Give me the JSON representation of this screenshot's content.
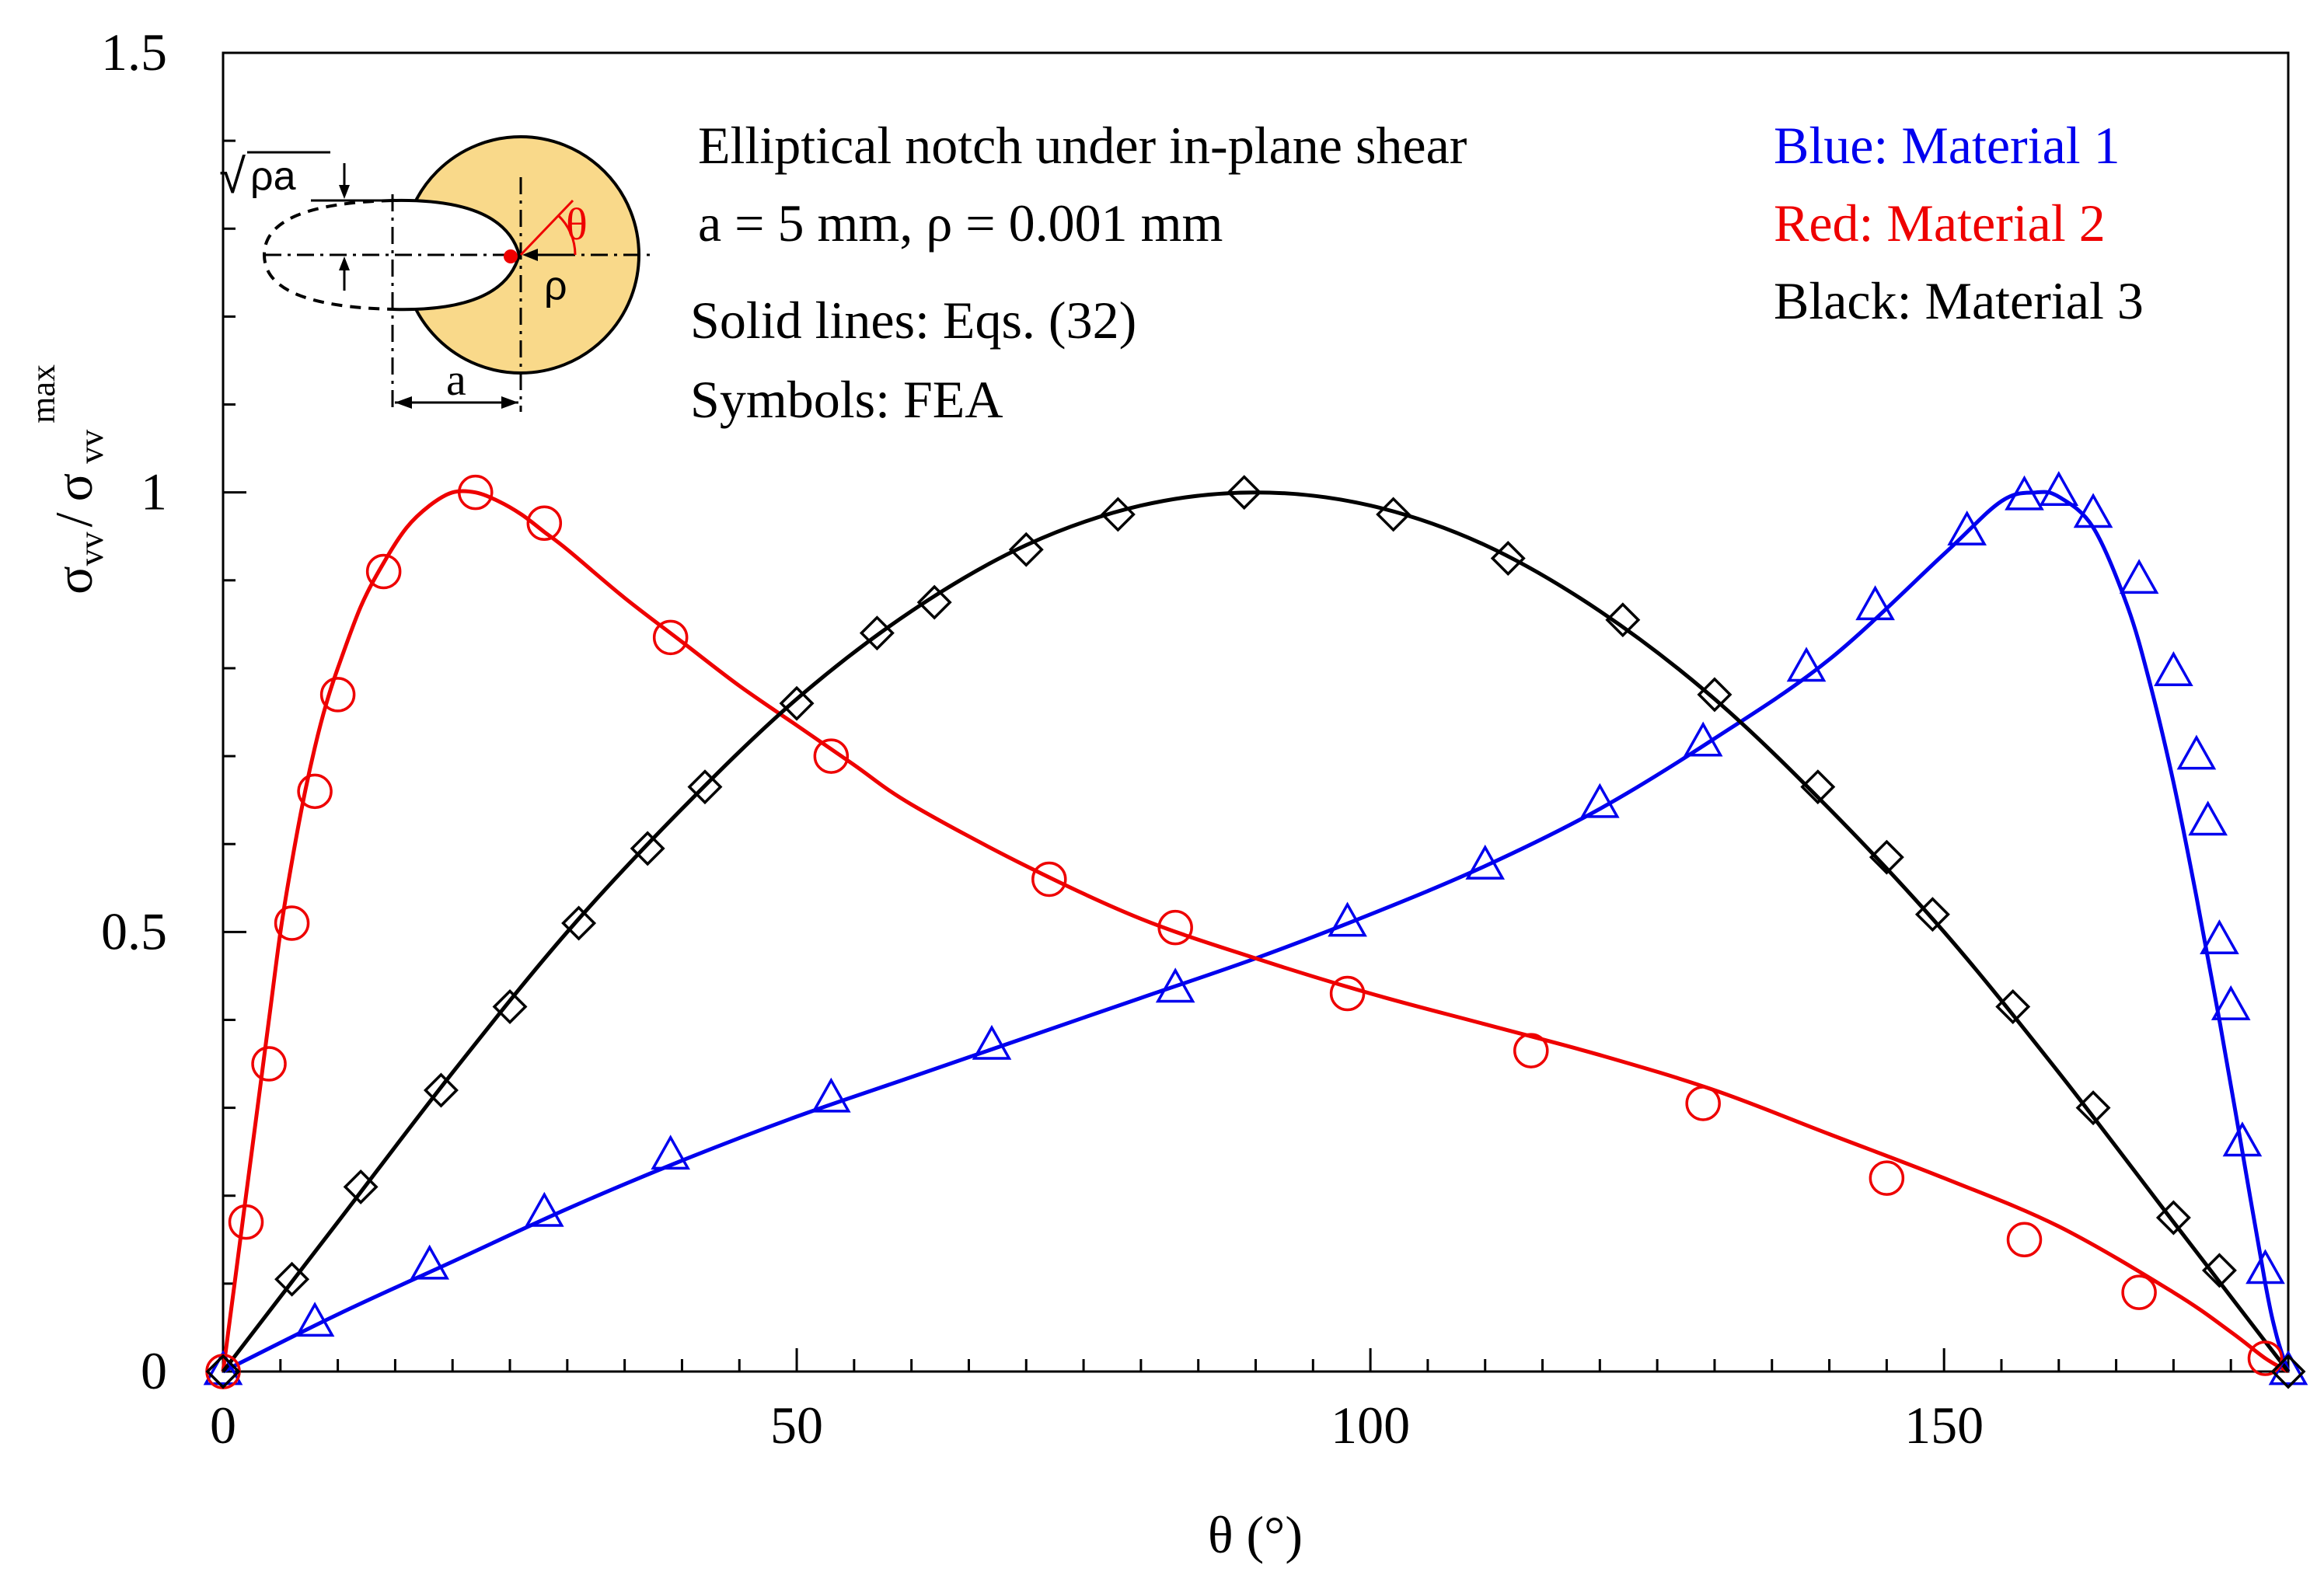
{
  "chart_data": {
    "type": "line",
    "title": "Elliptical notch under in-plane shear",
    "xlabel": "θ (°)",
    "ylabel": {
      "sigma": "σ",
      "sub": "vv",
      "slash": "/",
      "sup": "max"
    },
    "xlim": [
      0,
      180
    ],
    "ylim": [
      0,
      1.5
    ],
    "x_ticks": [
      0,
      50,
      100,
      150
    ],
    "x_tick_labels": [
      "0",
      "50",
      "100",
      "150"
    ],
    "y_ticks": [
      0,
      0.5,
      1,
      1.5
    ],
    "y_tick_labels": [
      "0",
      "0.5",
      "1",
      "1.5"
    ],
    "x_minor_ticks": [
      5,
      10,
      15,
      20,
      25,
      30,
      35,
      40,
      45,
      55,
      60,
      65,
      70,
      75,
      80,
      85,
      90,
      95,
      105,
      110,
      115,
      120,
      125,
      130,
      135,
      140,
      145,
      155,
      160,
      165,
      170,
      175
    ],
    "y_minor_ticks": [
      0.1,
      0.2,
      0.3,
      0.4,
      0.6,
      0.7,
      0.8,
      0.9,
      1.1,
      1.2,
      1.3,
      1.4
    ],
    "grid": false,
    "annotations": {
      "title_line": "Elliptical notch under in-plane shear",
      "params_line": "a = 5 mm, ρ = 0.001 mm",
      "solid_lines": "Solid lines: Eqs. (32)",
      "symbols": "Symbols: FEA"
    },
    "legend": {
      "position": "top-right",
      "entries": [
        {
          "label": "Blue: Material 1",
          "color": "#0000ee"
        },
        {
          "label": "Red: Material 2",
          "color": "#ee0000"
        },
        {
          "label": "Black: Material 3",
          "color": "#000000"
        }
      ]
    },
    "inset": {
      "labels": {
        "sqrt_sign": "√",
        "sqrt_arg": "ρa",
        "theta": "θ",
        "rho": "ρ",
        "a": "a"
      },
      "fill_color": "#f9d98a"
    },
    "series": [
      {
        "name": "Material 1",
        "color": "#0000ee",
        "marker": "triangle",
        "curve": {
          "x": [
            0,
            10,
            20,
            30,
            40,
            50,
            60,
            70,
            80,
            90,
            100,
            110,
            120,
            130,
            140,
            150,
            155,
            158,
            160,
            163,
            166,
            168,
            170,
            172,
            174,
            176,
            178,
            179,
            180
          ],
          "y": [
            0,
            0.065,
            0.125,
            0.185,
            0.24,
            0.29,
            0.335,
            0.38,
            0.425,
            0.47,
            0.52,
            0.575,
            0.64,
            0.72,
            0.81,
            0.93,
            0.99,
            1.0,
            0.995,
            0.96,
            0.87,
            0.78,
            0.67,
            0.54,
            0.4,
            0.25,
            0.1,
            0.04,
            0
          ]
        },
        "points": {
          "x": [
            0,
            8,
            18,
            28,
            39,
            53,
            67,
            83,
            98,
            110,
            120,
            129,
            138,
            144,
            152,
            157,
            160,
            163,
            167,
            170,
            172,
            173,
            174,
            175,
            176,
            178,
            180
          ],
          "y": [
            0,
            0.055,
            0.12,
            0.18,
            0.245,
            0.31,
            0.37,
            0.435,
            0.51,
            0.575,
            0.645,
            0.715,
            0.8,
            0.87,
            0.955,
            0.995,
            1.0,
            0.975,
            0.9,
            0.795,
            0.7,
            0.625,
            0.49,
            0.415,
            0.26,
            0.115,
            0
          ]
        }
      },
      {
        "name": "Material 2",
        "color": "#ee0000",
        "marker": "circle",
        "curve": {
          "x": [
            0,
            1,
            2,
            3,
            4,
            5,
            6,
            7,
            8,
            9,
            10,
            12,
            14,
            16,
            18,
            20,
            22,
            24,
            26,
            28,
            30,
            35,
            40,
            45,
            50,
            55,
            60,
            70,
            80,
            90,
            100,
            110,
            120,
            130,
            140,
            150,
            160,
            170,
            175,
            178,
            180
          ],
          "y": [
            0,
            0.1,
            0.2,
            0.3,
            0.4,
            0.5,
            0.58,
            0.65,
            0.71,
            0.76,
            0.8,
            0.87,
            0.92,
            0.96,
            0.985,
            1.0,
            1.0,
            0.99,
            0.975,
            0.955,
            0.935,
            0.88,
            0.83,
            0.78,
            0.735,
            0.69,
            0.645,
            0.575,
            0.515,
            0.47,
            0.43,
            0.395,
            0.36,
            0.32,
            0.27,
            0.22,
            0.165,
            0.09,
            0.045,
            0.015,
            0
          ]
        },
        "points": {
          "x": [
            0,
            2,
            4,
            6,
            8,
            10,
            14,
            22,
            28,
            39,
            53,
            72,
            83,
            98,
            114,
            129,
            145,
            157,
            167,
            178
          ],
          "y": [
            0,
            0.17,
            0.35,
            0.51,
            0.66,
            0.77,
            0.91,
            1.0,
            0.965,
            0.835,
            0.7,
            0.56,
            0.505,
            0.43,
            0.365,
            0.305,
            0.22,
            0.15,
            0.09,
            0.015
          ]
        }
      },
      {
        "name": "Material 3",
        "color": "#000000",
        "marker": "diamond",
        "curve": {
          "x": [
            0,
            10,
            20,
            30,
            40,
            50,
            60,
            70,
            80,
            90,
            100,
            110,
            120,
            130,
            140,
            150,
            160,
            170,
            180
          ],
          "y": [
            0,
            0.17,
            0.34,
            0.5,
            0.64,
            0.765,
            0.865,
            0.94,
            0.985,
            1.0,
            0.985,
            0.94,
            0.865,
            0.765,
            0.64,
            0.5,
            0.34,
            0.17,
            0
          ]
        },
        "points": {
          "x": [
            0,
            6,
            12,
            19,
            25,
            31,
            37,
            42,
            50,
            57,
            62,
            70,
            78,
            89,
            102,
            112,
            122,
            130,
            139,
            145,
            149,
            156,
            163,
            170,
            174,
            180
          ],
          "y": [
            0,
            0.105,
            0.21,
            0.32,
            0.415,
            0.51,
            0.595,
            0.665,
            0.76,
            0.84,
            0.875,
            0.935,
            0.975,
            1.0,
            0.975,
            0.925,
            0.855,
            0.77,
            0.665,
            0.585,
            0.52,
            0.415,
            0.3,
            0.175,
            0.115,
            0
          ]
        }
      }
    ]
  }
}
